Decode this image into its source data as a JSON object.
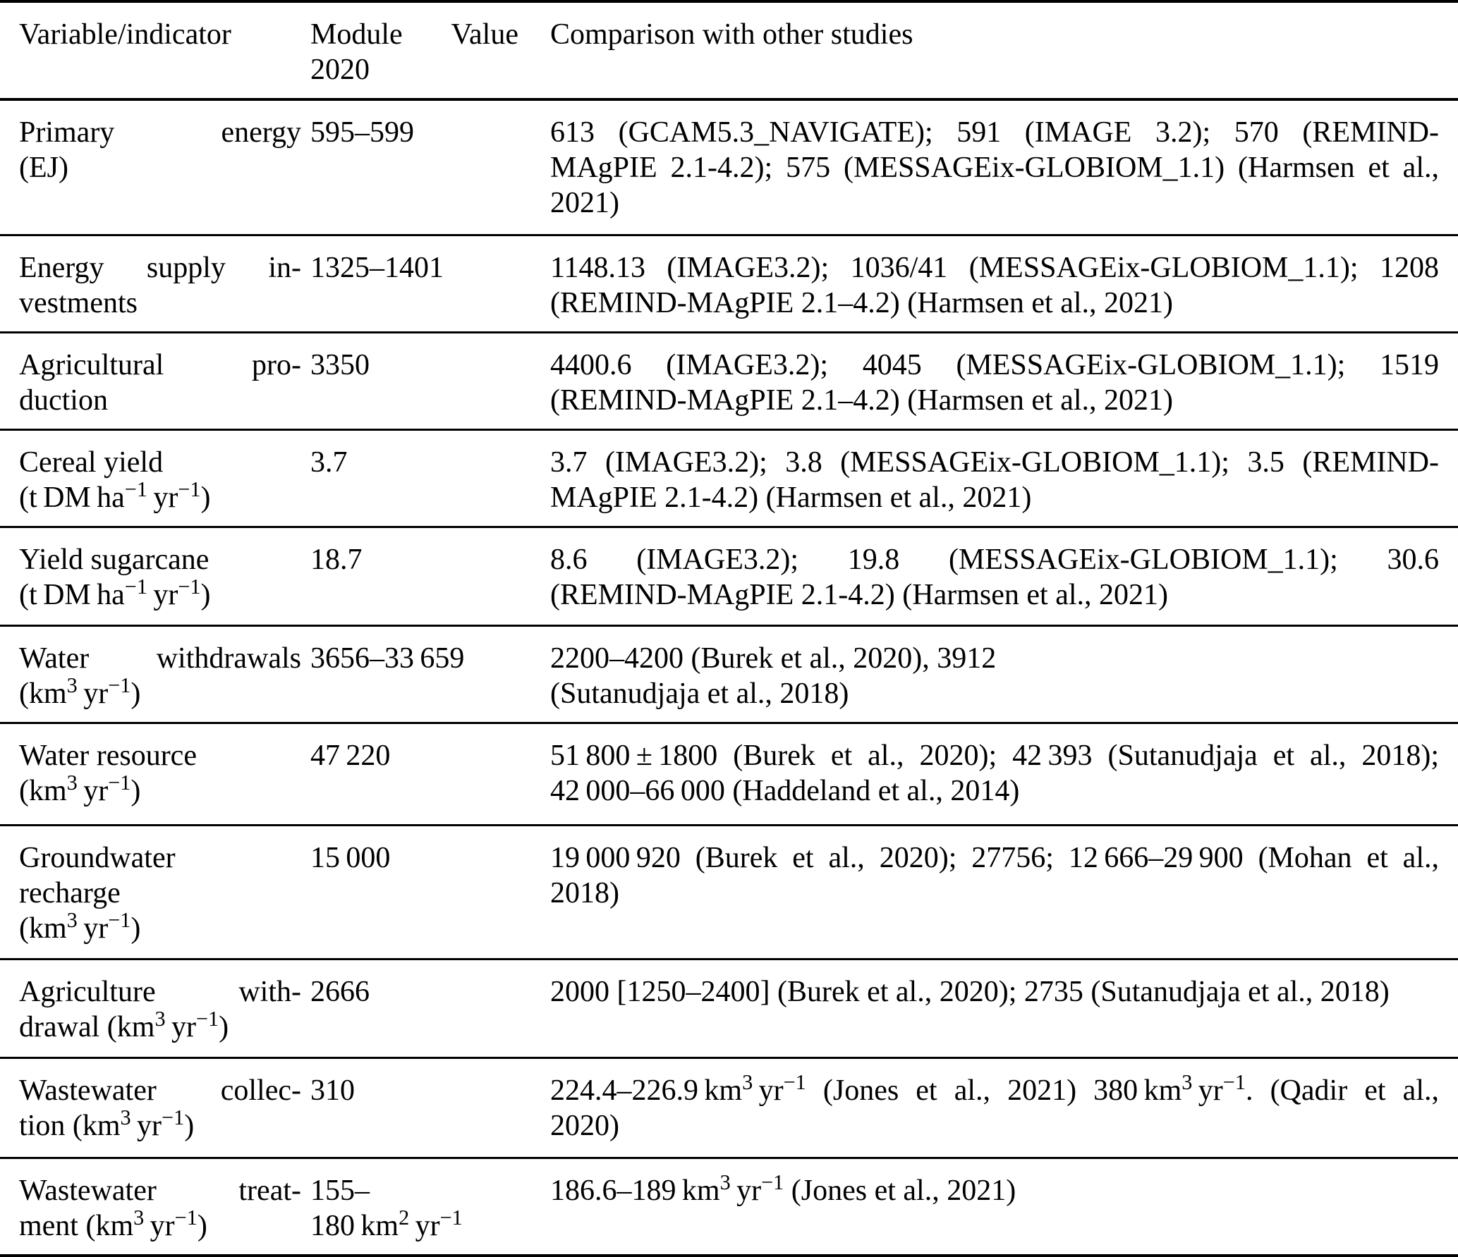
{
  "table": {
    "header": {
      "variable": [
        "Variable/indicator"
      ],
      "module_value": [
        "Module Value",
        "2020"
      ],
      "comparison": [
        "Comparison with other studies"
      ]
    },
    "rows": [
      {
        "variable": [
          "Primary energy",
          "(EJ)"
        ],
        "module_value": [
          "595–599"
        ],
        "comparison": [
          "613 (GCAM5.3_NAVIGATE); 591 (IMAGE 3.2); 570 (REMIND-",
          "MAgPIE 2.1-4.2); 575 (MESSAGEix-GLOBIOM_1.1) (Harmsen et al.,",
          "2021)"
        ]
      },
      {
        "variable": [
          "Energy supply in-",
          "vestments"
        ],
        "module_value": [
          "1325–1401"
        ],
        "comparison": [
          "1148.13 (IMAGE3.2); 1036/41 (MESSAGEix-GLOBIOM_1.1); 1208",
          "(REMIND-MAgPIE 2.1–4.2) (Harmsen et al., 2021)"
        ]
      },
      {
        "variable": [
          "Agricultural pro-",
          "duction"
        ],
        "module_value": [
          "3350"
        ],
        "comparison": [
          "4400.6 (IMAGE3.2); 4045 (MESSAGEix-GLOBIOM_1.1); 1519",
          "(REMIND-MAgPIE 2.1–4.2) (Harmsen et al., 2021)"
        ]
      },
      {
        "variable": [
          "Cereal yield",
          "(t DM ha^{−1} yr^{−1})"
        ],
        "module_value": [
          "3.7"
        ],
        "comparison": [
          "3.7 (IMAGE3.2); 3.8 (MESSAGEix-GLOBIOM_1.1); 3.5 (REMIND-",
          "MAgPIE 2.1-4.2) (Harmsen et al., 2021)"
        ]
      },
      {
        "variable": [
          "Yield sugarcane",
          "(t DM ha^{−1} yr^{−1})"
        ],
        "module_value": [
          "18.7"
        ],
        "comparison": [
          "8.6 (IMAGE3.2); 19.8 (MESSAGEix-GLOBIOM_1.1); 30.6",
          "(REMIND-MAgPIE 2.1-4.2) (Harmsen et al., 2021)"
        ]
      },
      {
        "variable": [
          "Water withdrawals",
          "(km^{3} yr^{−1})"
        ],
        "module_value": [
          "3656–33 659"
        ],
        "comparison": [
          "2200–4200 (Burek et al., 2020), 3912",
          "(Sutanudjaja et al., 2018)"
        ]
      },
      {
        "variable": [
          "Water resource",
          "(km^{3} yr^{−1})"
        ],
        "module_value": [
          "47 220"
        ],
        "comparison": [
          "51 800 ± 1800 (Burek et al., 2020); 42 393 (Sutanudjaja et al., 2018);",
          "42 000–66 000 (Haddeland et al., 2014)"
        ]
      },
      {
        "variable": [
          "Groundwater",
          "recharge",
          "(km^{3} yr^{−1})"
        ],
        "module_value": [
          "15 000"
        ],
        "comparison": [
          "19 000 920 (Burek et al., 2020); 27756; 12 666–29 900 (Mohan et al.,",
          "2018)"
        ]
      },
      {
        "variable": [
          "Agriculture with-",
          "drawal (km^{3} yr^{−1})"
        ],
        "module_value": [
          "2666"
        ],
        "comparison": [
          "2000 [1250–2400] (Burek et al., 2020); 2735 (Sutanudjaja et al., 2018)"
        ]
      },
      {
        "variable": [
          "Wastewater collec-",
          "tion (km^{3} yr^{−1})"
        ],
        "module_value": [
          "310"
        ],
        "comparison": [
          "224.4–226.9 km^{3} yr^{−1} (Jones et al., 2021) 380 km^{3} yr^{−1}. (Qadir et al.,",
          "2020)"
        ]
      },
      {
        "variable": [
          "Wastewater treat-",
          "ment (km^{3} yr^{−1})"
        ],
        "module_value": [
          "155–",
          "180 km^{2} yr^{−1}"
        ],
        "comparison": [
          "186.6–189 km^{3} yr^{−1} (Jones et al., 2021)"
        ]
      }
    ]
  },
  "colors": {
    "text": "#000000",
    "background": "#ffffff",
    "rule": "#000000"
  }
}
